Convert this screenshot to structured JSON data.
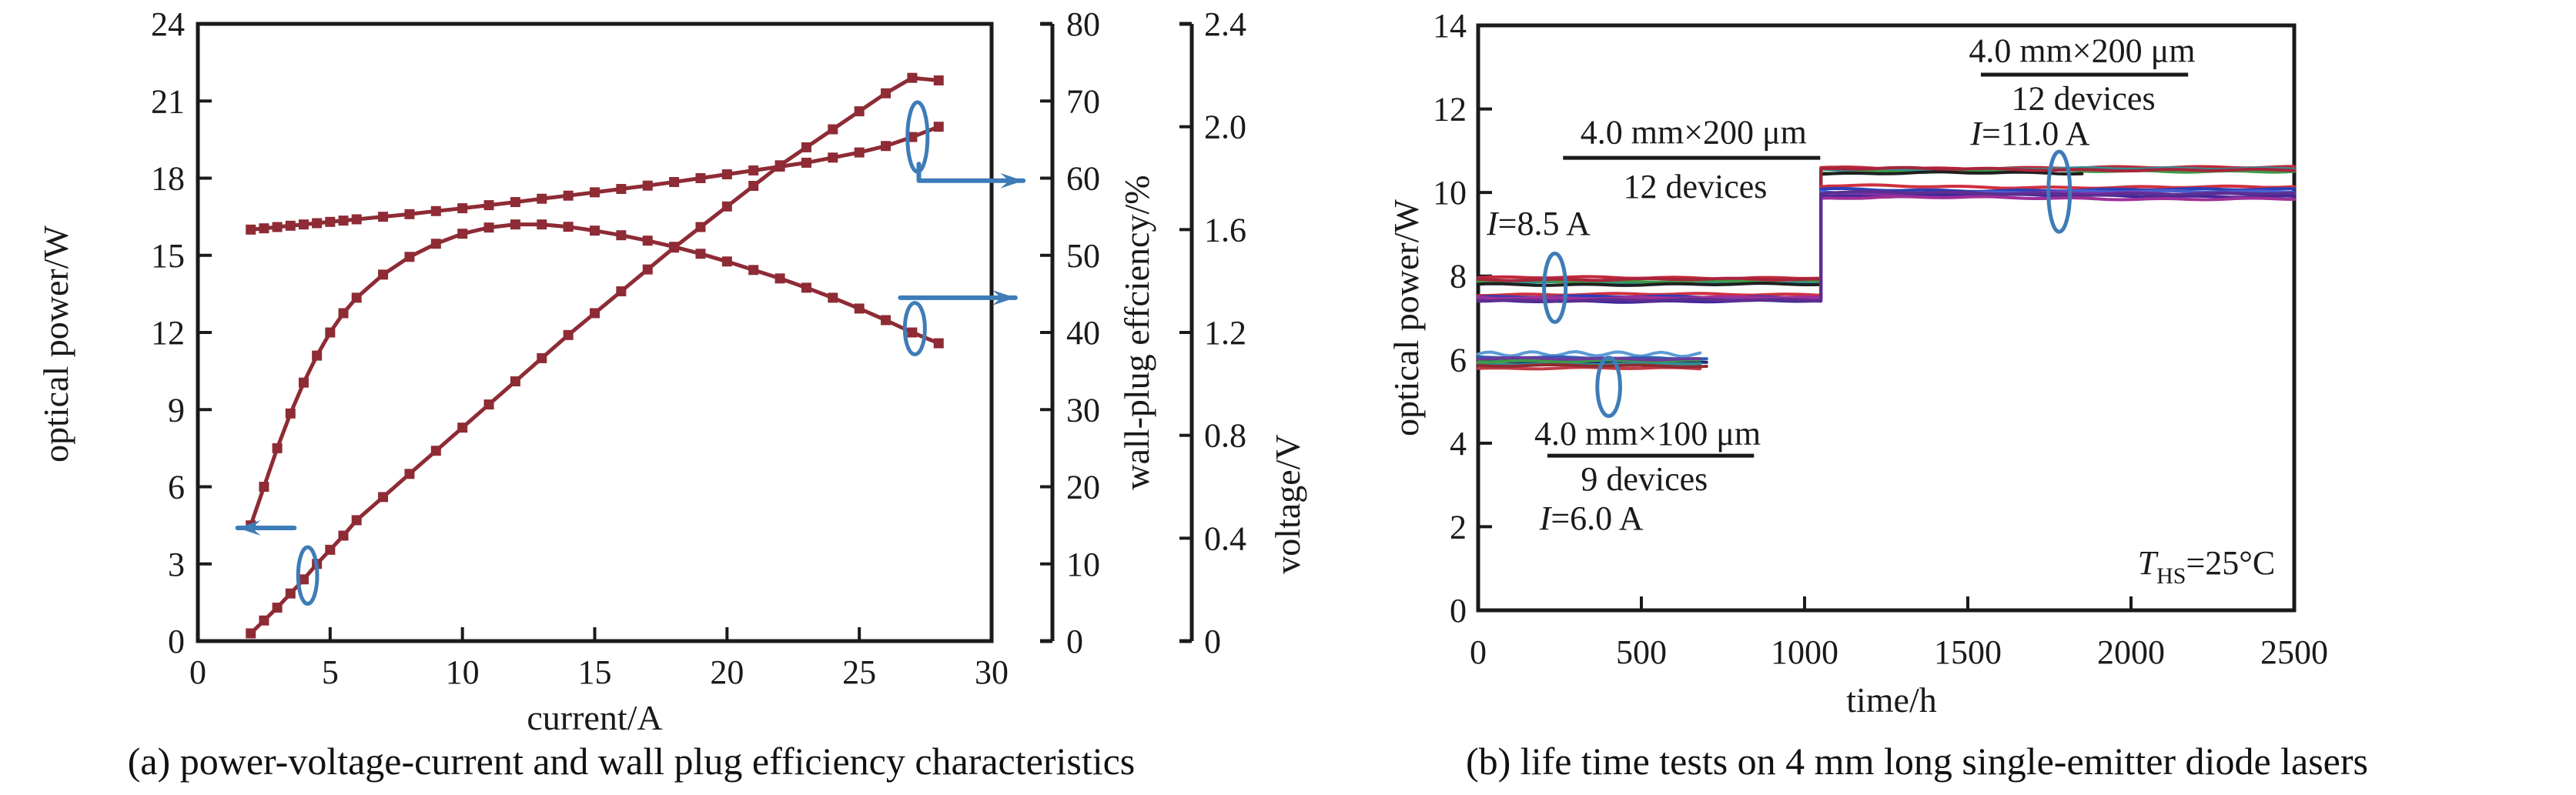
{
  "chart_data": [
    {
      "id": "a",
      "type": "line",
      "caption": "(a) power-voltage-current and wall plug efficiency characteristics",
      "x_axis": {
        "label": "current/A",
        "min": 0,
        "max": 30,
        "ticks": [
          0,
          5,
          10,
          15,
          20,
          25,
          30
        ]
      },
      "y_axis_power": {
        "label": "optical power/W",
        "min": 0,
        "max": 24,
        "ticks": [
          0,
          3,
          6,
          9,
          12,
          15,
          18,
          21,
          24
        ]
      },
      "y_axis_efficiency": {
        "label": "wall-plug effciency/%",
        "min": 0,
        "max": 80,
        "ticks": [
          0,
          10,
          20,
          30,
          40,
          50,
          60,
          70,
          80
        ]
      },
      "y_axis_voltage": {
        "label": "voltage/V",
        "min": 0,
        "max": 2.4,
        "ticks": [
          "0",
          "0.4",
          "0.8",
          "1.2",
          "1.6",
          "2.0",
          "2.4"
        ]
      },
      "series_color": "#8e2b35",
      "annotation_color": "#3e7cb8",
      "series": {
        "current_A": [
          2,
          2.5,
          3,
          3.5,
          4,
          4.5,
          5,
          5.5,
          6,
          7,
          8,
          9,
          10,
          11,
          12,
          13,
          14,
          15,
          16,
          17,
          18,
          19,
          20,
          21,
          22,
          23,
          24,
          25,
          26,
          27,
          28
        ],
        "optical_power_W": [
          0.3,
          0.8,
          1.3,
          1.85,
          2.4,
          3.0,
          3.55,
          4.1,
          4.7,
          5.6,
          6.5,
          7.4,
          8.3,
          9.2,
          10.1,
          11.0,
          11.9,
          12.75,
          13.6,
          14.45,
          15.3,
          16.1,
          16.9,
          17.7,
          18.5,
          19.2,
          19.9,
          20.6,
          21.3,
          21.9,
          21.8
        ],
        "voltage_V": [
          1.6,
          1.605,
          1.61,
          1.615,
          1.62,
          1.625,
          1.63,
          1.635,
          1.64,
          1.65,
          1.66,
          1.672,
          1.683,
          1.695,
          1.707,
          1.72,
          1.732,
          1.745,
          1.758,
          1.771,
          1.785,
          1.8,
          1.815,
          1.83,
          1.845,
          1.86,
          1.88,
          1.9,
          1.925,
          1.96,
          2.0
        ],
        "wall_plug_efficiency_pct": [
          15,
          20,
          25,
          29.5,
          33.5,
          37,
          40,
          42.5,
          44.5,
          47.5,
          49.8,
          51.5,
          52.8,
          53.6,
          54.0,
          54.0,
          53.7,
          53.2,
          52.6,
          51.9,
          51.1,
          50.2,
          49.2,
          48.1,
          47.0,
          45.8,
          44.5,
          43.1,
          41.6,
          40.0,
          38.6
        ]
      },
      "axis_pointers": [
        {
          "target": "optical-power-left-axis",
          "ellipse": {
            "I": 4.15,
            "P": 2.55,
            "rxI": 0.36,
            "ryP": 1.1
          },
          "arrow": [
            {
              "I": 3.65,
              "P": 4.4
            },
            {
              "I": 1.5,
              "P": 4.4
            }
          ]
        },
        {
          "target": "voltage-right-axis",
          "ellipse": {
            "I": 27.2,
            "P": 19.6,
            "rxI": 0.38,
            "ryP": 1.35
          },
          "arrow": [
            {
              "I": 27.25,
              "P": 18.55
            },
            {
              "I": 27.25,
              "P": 17.9
            },
            {
              "I": 31.2,
              "P": 17.9
            }
          ]
        },
        {
          "target": "efficiency-right-axis",
          "ellipse": {
            "I": 27.1,
            "P": 12.15,
            "rxI": 0.38,
            "ryP": 1.0
          },
          "arrow": [
            {
              "I": 26.55,
              "P": 13.35
            },
            {
              "I": 30.9,
              "P": 13.35
            }
          ]
        }
      ]
    },
    {
      "id": "b",
      "type": "line",
      "caption": "(b) life time tests on 4 mm long single-emitter diode lasers",
      "x_axis": {
        "label": "time/h",
        "min": 0,
        "max": 2500,
        "ticks": [
          0,
          500,
          1000,
          1500,
          2000,
          2500
        ]
      },
      "y_axis": {
        "label": "optical power/W",
        "min": 0,
        "max": 14,
        "ticks": [
          0,
          2,
          4,
          6,
          8,
          10,
          12,
          14
        ]
      },
      "annotation_color": "#3e7cb8",
      "groups": [
        {
          "name": "4.0 mm×100 μm",
          "devices": "9 devices",
          "current": "I=6.0 A",
          "t_start": 0,
          "lines": [
            {
              "color": "#5b9bd5",
              "level": 6.13,
              "t_end": 690,
              "amp": 0.05
            },
            {
              "color": "#2e5fb8",
              "level": 6.04,
              "t_end": 700
            },
            {
              "color": "#1f1f1f",
              "level": 6.0,
              "t_end": 695
            },
            {
              "color": "#1f2d7a",
              "level": 5.94,
              "t_end": 705
            },
            {
              "color": "#2f8f8f",
              "level": 5.9,
              "t_end": 685
            },
            {
              "color": "#3c9b46",
              "level": 5.97,
              "t_end": 698
            },
            {
              "color": "#c23b44",
              "level": 5.79,
              "t_end": 692
            },
            {
              "color": "#8f2b33",
              "level": 5.85,
              "t_end": 702
            },
            {
              "color": "#6a3d9a",
              "level": 6.02,
              "t_end": 688
            }
          ]
        },
        {
          "name": "4.0 mm×200 μm",
          "devices": "12 devices",
          "current_phase1": "I=8.5 A",
          "current_phase2": "I=11.0 A",
          "t_start": 0,
          "t_step": 1050,
          "lines": [
            {
              "color": "#c1293a",
              "level1": 7.96,
              "level2": 10.6,
              "t_end": 2500
            },
            {
              "color": "#2f8f93",
              "level1": 7.84,
              "level2": 10.56,
              "t_end": 2500
            },
            {
              "color": "#3c9b46",
              "level1": 7.88,
              "level2": 10.5,
              "t_end": 2500
            },
            {
              "color": "#1f1f1f",
              "level1": 7.8,
              "level2": 10.45,
              "t_end": 1850
            },
            {
              "color": "#a8243c",
              "level1": 7.92,
              "level2": 10.55,
              "t_end": 2500
            },
            {
              "color": "#d0303f",
              "level1": 7.56,
              "level2": 10.14,
              "t_end": 2500
            },
            {
              "color": "#2c3fb5",
              "level1": 7.5,
              "level2": 10.07,
              "t_end": 2500
            },
            {
              "color": "#4a5fd0",
              "level1": 7.46,
              "level2": 10.01,
              "t_end": 2500
            },
            {
              "color": "#8030a8",
              "level1": 7.44,
              "level2": 9.96,
              "t_end": 2500
            },
            {
              "color": "#41279b",
              "level1": 7.4,
              "level2": 9.91,
              "t_end": 2500
            },
            {
              "color": "#a03098",
              "level1": 7.48,
              "level2": 9.86,
              "t_end": 2500
            },
            {
              "color": "#5c2e90",
              "level1": 7.42,
              "level2": 9.98,
              "t_end": 2500
            }
          ]
        }
      ],
      "annotations": {
        "blocks": [
          {
            "title": "4.0 mm×200 μm",
            "sub": "12 devices",
            "current_parts": [
              {
                "t": "I",
                "italic": true
              },
              {
                "t": "=8.5 A"
              }
            ],
            "title_pos": {
              "t": 660,
              "P": 11.45
            },
            "line": {
              "t0": 260,
              "t1": 1048,
              "P": 10.83
            },
            "sub_pos": {
              "t": 665,
              "P": 10.15
            },
            "current_pos": {
              "t": 185,
              "P": 9.27
            }
          },
          {
            "title": "4.0 mm×200 μm",
            "sub": "12 devices",
            "current_parts": [
              {
                "t": "I",
                "italic": true
              },
              {
                "t": "=11.0 A"
              }
            ],
            "title_pos": {
              "t": 1850,
              "P": 13.4
            },
            "line": {
              "t0": 1540,
              "t1": 2175,
              "P": 12.82
            },
            "sub_pos": {
              "t": 1854,
              "P": 12.26
            },
            "current_pos": {
              "t": 1691,
              "P": 11.42
            }
          },
          {
            "title": "4.0 mm×100 μm",
            "sub": "9 devices",
            "current_parts": [
              {
                "t": "I",
                "italic": true
              },
              {
                "t": "=6.0 A"
              }
            ],
            "title_pos": {
              "t": 519,
              "P": 4.24
            },
            "line": {
              "t0": 212,
              "t1": 845,
              "P": 3.7
            },
            "sub_pos": {
              "t": 509,
              "P": 3.15
            },
            "current_pos": {
              "t": 347,
              "P": 2.21
            }
          }
        ],
        "temperature_parts": [
          {
            "t": "T",
            "italic": true
          },
          {
            "t": "HS",
            "sub": true
          },
          {
            "t": "=25°C"
          }
        ],
        "temperature_pos": {
          "t": 2231,
          "P": 1.14
        },
        "ellipses": [
          {
            "t": 235,
            "P": 7.72,
            "rxT": 33,
            "ryP": 0.82
          },
          {
            "t": 400,
            "P": 5.35,
            "rxT": 35,
            "ryP": 0.7
          },
          {
            "t": 1780,
            "P": 10.02,
            "rxT": 33,
            "ryP": 0.96
          }
        ]
      }
    }
  ]
}
